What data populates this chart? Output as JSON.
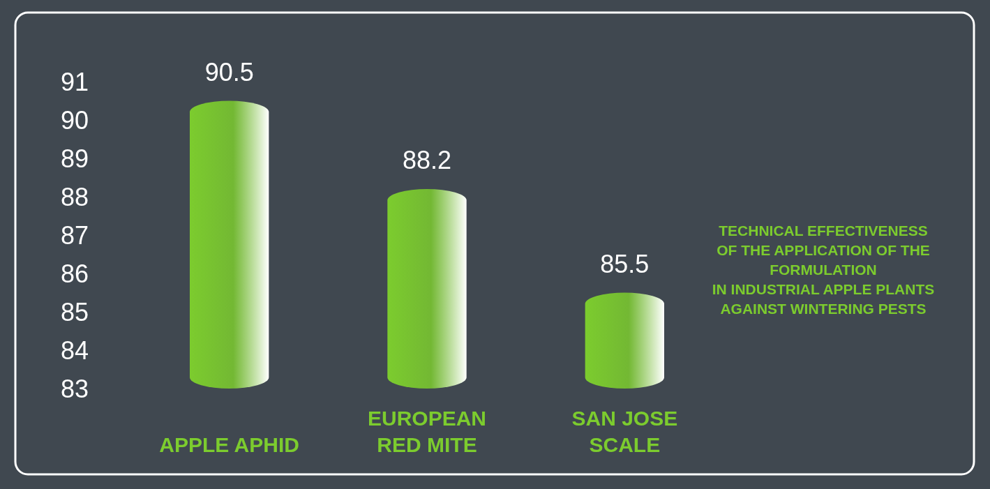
{
  "chart_data": {
    "type": "bar",
    "title": "TECHNICAL EFFECTIVENESS\nOF THE APPLICATION OF THE\nFORMULATION\nIN INDUSTRIAL APPLE PLANTS\nAGAINST WINTERING PESTS",
    "categories": [
      "APPLE APHID",
      "EUROPEAN\nRED MITE",
      "SAN JOSE\nSCALE"
    ],
    "values": [
      90.5,
      88.2,
      85.5
    ],
    "color": "#7ccc2e",
    "ylim": [
      83,
      91
    ],
    "yticks": [
      83,
      84,
      85,
      86,
      87,
      88,
      89,
      90,
      91
    ],
    "grid": false,
    "data_labels": true
  }
}
